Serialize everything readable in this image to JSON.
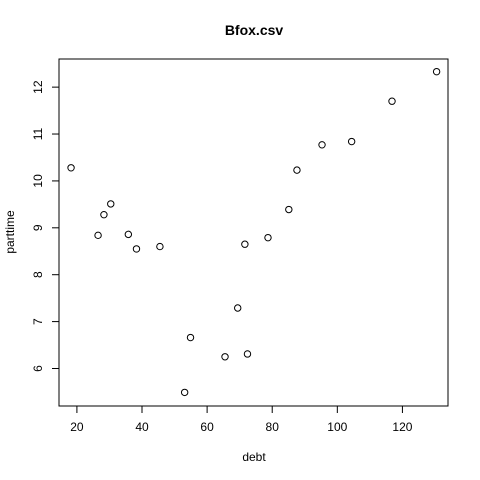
{
  "chart_data": {
    "type": "scatter",
    "title": "Bfox.csv",
    "xlabel": "debt",
    "ylabel": "parttime",
    "xlim": [
      14.5,
      134
    ],
    "ylim": [
      5.2,
      12.6
    ],
    "xticks": [
      20,
      40,
      60,
      80,
      100,
      120
    ],
    "yticks": [
      6,
      7,
      8,
      9,
      10,
      11,
      12
    ],
    "grid": false,
    "legend": "none",
    "marker": "open-circle",
    "color": "#000000",
    "points": [
      {
        "x": 18.2,
        "y": 10.28
      },
      {
        "x": 26.5,
        "y": 8.84
      },
      {
        "x": 28.3,
        "y": 9.28
      },
      {
        "x": 30.4,
        "y": 9.51
      },
      {
        "x": 35.8,
        "y": 8.86
      },
      {
        "x": 38.3,
        "y": 8.55
      },
      {
        "x": 45.5,
        "y": 8.6
      },
      {
        "x": 53.1,
        "y": 5.49
      },
      {
        "x": 54.9,
        "y": 6.66
      },
      {
        "x": 65.5,
        "y": 6.25
      },
      {
        "x": 69.4,
        "y": 7.29
      },
      {
        "x": 71.6,
        "y": 8.65
      },
      {
        "x": 72.4,
        "y": 6.31
      },
      {
        "x": 78.7,
        "y": 8.79
      },
      {
        "x": 85.1,
        "y": 9.39
      },
      {
        "x": 87.6,
        "y": 10.23
      },
      {
        "x": 95.3,
        "y": 10.77
      },
      {
        "x": 104.4,
        "y": 10.84
      },
      {
        "x": 116.8,
        "y": 11.7
      },
      {
        "x": 130.5,
        "y": 12.33
      }
    ]
  }
}
